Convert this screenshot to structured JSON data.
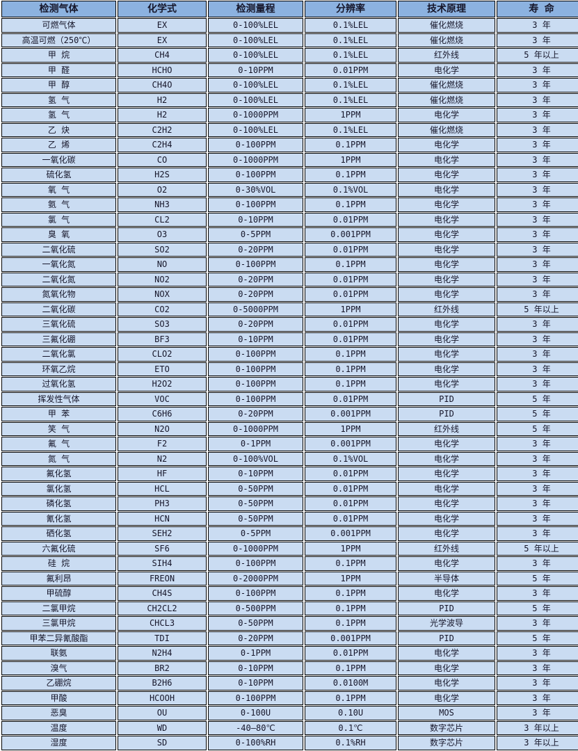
{
  "colors": {
    "header_bg": "#8cb2e0",
    "row_bg": "#cadcf2",
    "border": "#000000",
    "gap": "#ffffff",
    "text": "#16162a"
  },
  "table": {
    "columns": [
      {
        "key": "gas",
        "label": "检测气体"
      },
      {
        "key": "formula",
        "label": "化学式"
      },
      {
        "key": "range",
        "label": "检测量程"
      },
      {
        "key": "resolution",
        "label": "分辨率"
      },
      {
        "key": "principle",
        "label": "技术原理"
      },
      {
        "key": "lifespan",
        "label": "寿 命"
      }
    ],
    "rows": [
      [
        "可燃气体",
        "EX",
        "0-100%LEL",
        "0.1%LEL",
        "催化燃烧",
        "3 年"
      ],
      [
        "高温可燃（250℃）",
        "EX",
        "0-100%LEL",
        "0.1%LEL",
        "催化燃烧",
        "3 年"
      ],
      [
        "甲 烷",
        "CH4",
        "0-100%LEL",
        "0.1%LEL",
        "红外线",
        "5 年以上"
      ],
      [
        "甲 醛",
        "HCHO",
        "0-10PPM",
        "0.01PPM",
        "电化学",
        "3 年"
      ],
      [
        "甲 醇",
        "CH4O",
        "0-100%LEL",
        "0.1%LEL",
        "催化燃烧",
        "3 年"
      ],
      [
        "氢 气",
        "H2",
        "0-100%LEL",
        "0.1%LEL",
        "催化燃烧",
        "3 年"
      ],
      [
        "氢 气",
        "H2",
        "0-1000PPM",
        "1PPM",
        "电化学",
        "3 年"
      ],
      [
        "乙 炔",
        "C2H2",
        "0-100%LEL",
        "0.1%LEL",
        "催化燃烧",
        "3 年"
      ],
      [
        "乙 烯",
        "C2H4",
        "0-100PPM",
        "0.1PPM",
        "电化学",
        "3 年"
      ],
      [
        "一氧化碳",
        "CO",
        "0-1000PPM",
        "1PPM",
        "电化学",
        "3 年"
      ],
      [
        "硫化氢",
        "H2S",
        "0-100PPM",
        "0.1PPM",
        "电化学",
        "3 年"
      ],
      [
        "氧 气",
        "O2",
        "0-30%VOL",
        "0.1%VOL",
        "电化学",
        "3 年"
      ],
      [
        "氨 气",
        "NH3",
        "0-100PPM",
        "0.1PPM",
        "电化学",
        "3 年"
      ],
      [
        "氯 气",
        "CL2",
        "0-10PPM",
        "0.01PPM",
        "电化学",
        "3 年"
      ],
      [
        "臭 氧",
        "O3",
        "0-5PPM",
        "0.001PPM",
        "电化学",
        "3 年"
      ],
      [
        "二氧化硫",
        "SO2",
        "0-20PPM",
        "0.01PPM",
        "电化学",
        "3 年"
      ],
      [
        "一氧化氮",
        "NO",
        "0-100PPM",
        "0.1PPM",
        "电化学",
        "3 年"
      ],
      [
        "二氧化氮",
        "NO2",
        "0-20PPM",
        "0.01PPM",
        "电化学",
        "3 年"
      ],
      [
        "氮氧化物",
        "NOX",
        "0-20PPM",
        "0.01PPM",
        "电化学",
        "3 年"
      ],
      [
        "二氧化碳",
        "CO2",
        "0-5000PPM",
        "1PPM",
        "红外线",
        "5 年以上"
      ],
      [
        "三氧化硫",
        "SO3",
        "0-20PPM",
        "0.01PPM",
        "电化学",
        "3 年"
      ],
      [
        "三氟化硼",
        "BF3",
        "0-10PPM",
        "0.01PPM",
        "电化学",
        "3 年"
      ],
      [
        "二氧化氯",
        "CLO2",
        "0-100PPM",
        "0.1PPM",
        "电化学",
        "3 年"
      ],
      [
        "环氧乙烷",
        "ETO",
        "0-100PPM",
        "0.1PPM",
        "电化学",
        "3 年"
      ],
      [
        "过氧化氢",
        "H2O2",
        "0-100PPM",
        "0.1PPM",
        "电化学",
        "3 年"
      ],
      [
        "挥发性气体",
        "VOC",
        "0-100PPM",
        "0.01PPM",
        "PID",
        "5 年"
      ],
      [
        "甲 苯",
        "C6H6",
        "0-20PPM",
        "0.001PPM",
        "PID",
        "5 年"
      ],
      [
        "笑 气",
        "N2O",
        "0-1000PPM",
        "1PPM",
        "红外线",
        "5 年"
      ],
      [
        "氟 气",
        "F2",
        "0-1PPM",
        "0.001PPM",
        "电化学",
        "3 年"
      ],
      [
        "氮 气",
        "N2",
        "0-100%VOL",
        "0.1%VOL",
        "电化学",
        "3 年"
      ],
      [
        "氟化氢",
        "HF",
        "0-10PPM",
        "0.01PPM",
        "电化学",
        "3 年"
      ],
      [
        "氯化氢",
        "HCL",
        "0-50PPM",
        "0.01PPM",
        "电化学",
        "3 年"
      ],
      [
        "磷化氢",
        "PH3",
        "0-50PPM",
        "0.01PPM",
        "电化学",
        "3 年"
      ],
      [
        "氰化氢",
        "HCN",
        "0-50PPM",
        "0.01PPM",
        "电化学",
        "3 年"
      ],
      [
        "硒化氢",
        "SEH2",
        "0-5PPM",
        "0.001PPM",
        "电化学",
        "3 年"
      ],
      [
        "六氟化硫",
        "SF6",
        "0-1000PPM",
        "1PPM",
        "红外线",
        "5 年以上"
      ],
      [
        "硅 烷",
        "SIH4",
        "0-100PPM",
        "0.1PPM",
        "电化学",
        "3 年"
      ],
      [
        "氟利昂",
        "FREON",
        "0-2000PPM",
        "1PPM",
        "半导体",
        "5 年"
      ],
      [
        "甲硫醇",
        "CH4S",
        "0-100PPM",
        "0.1PPM",
        "电化学",
        "3 年"
      ],
      [
        "二氯甲烷",
        "CH2CL2",
        "0-500PPM",
        "0.1PPM",
        "PID",
        "5 年"
      ],
      [
        "三氯甲烷",
        "CHCL3",
        "0-50PPM",
        "0.1PPM",
        "光学波导",
        "3 年"
      ],
      [
        "甲苯二异氰酸酯",
        "TDI",
        "0-20PPM",
        "0.001PPM",
        "PID",
        "5 年"
      ],
      [
        "联氨",
        "N2H4",
        "0-1PPM",
        "0.01PPM",
        "电化学",
        "3 年"
      ],
      [
        "溴气",
        "BR2",
        "0-10PPM",
        "0.1PPM",
        "电化学",
        "3 年"
      ],
      [
        "乙硼烷",
        "B2H6",
        "0-10PPM",
        "0.0100M",
        "电化学",
        "3 年"
      ],
      [
        "甲酸",
        "HCOOH",
        "0-100PPM",
        "0.1PPM",
        "电化学",
        "3 年"
      ],
      [
        "恶臭",
        "OU",
        "0-100U",
        "0.10U",
        "MOS",
        "3 年"
      ],
      [
        "温度",
        "WD",
        "-40—80℃",
        "0.1℃",
        "数字芯片",
        "3 年以上"
      ],
      [
        "湿度",
        "SD",
        "0-100%RH",
        "0.1%RH",
        "数字芯片",
        "3 年以上"
      ]
    ]
  }
}
